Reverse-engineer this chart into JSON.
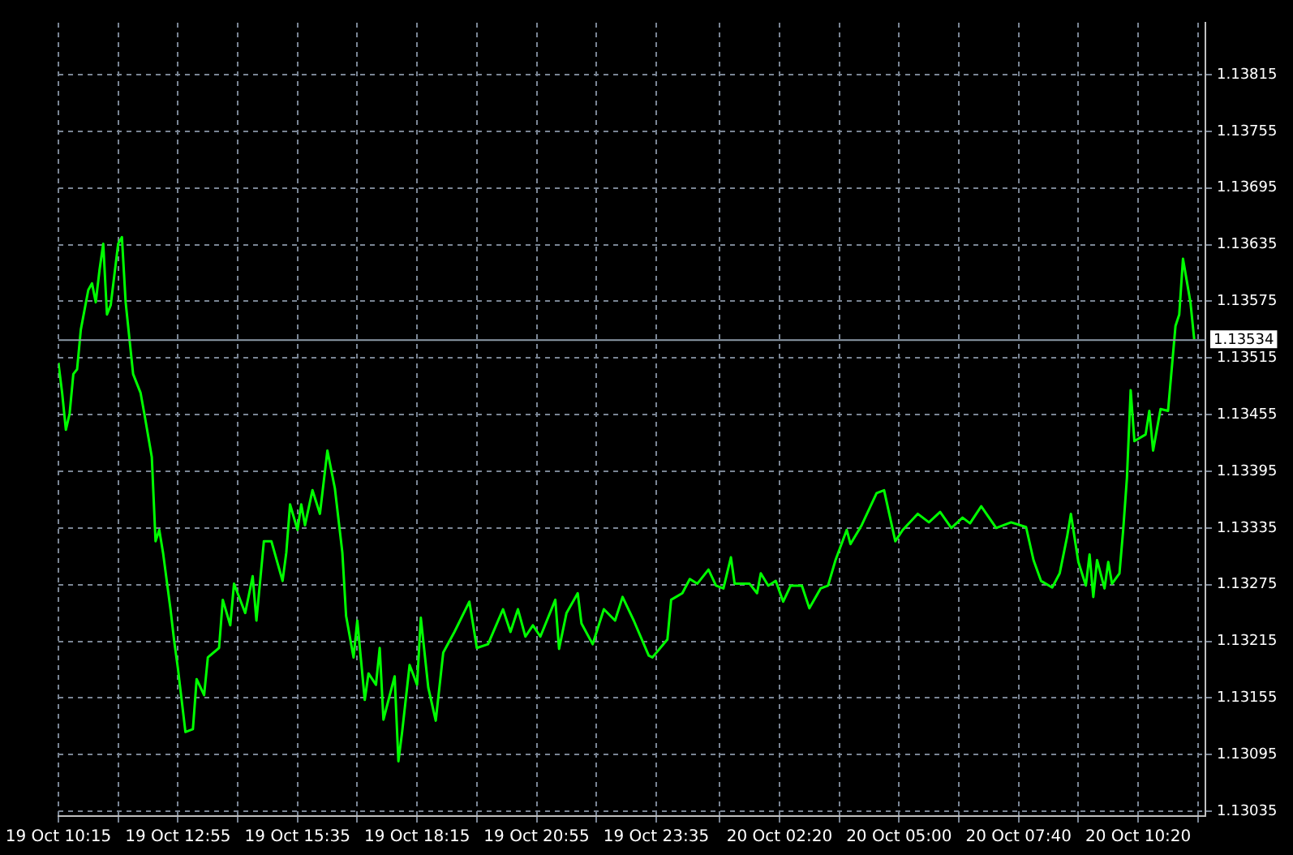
{
  "chart_data": {
    "type": "line",
    "x": [
      "--10-19T10:15",
      "--10-19T10:20",
      "--10-19T10:25",
      "--10-19T10:30",
      "--10-19T10:35",
      "--10-19T10:40",
      "--10-19T10:45",
      "--10-19T10:55",
      "--10-19T11:00",
      "--10-19T11:05",
      "--10-19T11:10",
      "--10-19T11:15",
      "--10-19T11:20",
      "--10-19T11:25",
      "--10-19T11:35",
      "--10-19T11:40",
      "--10-19T11:45",
      "--10-19T11:55",
      "--10-19T12:05",
      "--10-19T12:10",
      "--10-19T12:20",
      "--10-19T12:25",
      "--10-19T12:30",
      "--10-19T12:35",
      "--10-19T12:45",
      "--10-19T12:50",
      "--10-19T12:55",
      "--10-19T13:05",
      "--10-19T13:15",
      "--10-19T13:20",
      "--10-19T13:30",
      "--10-19T13:35",
      "--10-19T13:50",
      "--10-19T13:55",
      "--10-19T14:05",
      "--10-19T14:10",
      "--10-19T14:25",
      "--10-19T14:35",
      "--10-19T14:40",
      "--10-19T14:50",
      "--10-19T15:00",
      "--10-19T15:15",
      "--10-19T15:20",
      "--10-19T15:25",
      "--10-19T15:35",
      "--10-19T15:40",
      "--10-19T15:45",
      "--10-19T15:55",
      "--10-19T16:05",
      "--10-19T16:15",
      "--10-19T16:25",
      "--10-19T16:35",
      "--10-19T16:40",
      "--10-19T16:50",
      "--10-19T16:55",
      "--10-19T17:05",
      "--10-19T17:10",
      "--10-19T17:20",
      "--10-19T17:25",
      "--10-19T17:30",
      "--10-19T17:45",
      "--10-19T17:50",
      "--10-19T17:55",
      "--10-19T18:05",
      "--10-19T18:15",
      "--10-19T18:20",
      "--10-19T18:30",
      "--10-19T18:40",
      "--10-19T18:50",
      "--10-19T19:05",
      "--10-19T19:25",
      "--10-19T19:35",
      "--10-19T19:50",
      "--10-19T20:10",
      "--10-19T20:20",
      "--10-19T20:30",
      "--10-19T20:40",
      "--10-19T20:50",
      "--10-19T21:00",
      "--10-19T21:20",
      "--10-19T21:25",
      "--10-19T21:35",
      "--10-19T21:50",
      "--10-19T21:55",
      "--10-19T22:10",
      "--10-19T22:25",
      "--10-19T22:40",
      "--10-19T22:50",
      "--10-19T23:05",
      "--10-19T23:25",
      "--10-19T23:30",
      "--10-19T23:50",
      "--10-19T23:55",
      "--10-20T00:10",
      "--10-20T00:20",
      "--10-20T00:30",
      "--10-20T00:45",
      "--10-20T00:55",
      "--10-20T01:05",
      "--10-20T01:15",
      "--10-20T01:20",
      "--10-20T01:40",
      "--10-20T01:50",
      "--10-20T01:55",
      "--10-20T02:05",
      "--10-20T02:15",
      "--10-20T02:25",
      "--10-20T02:35",
      "--10-20T02:50",
      "--10-20T03:00",
      "--10-20T03:15",
      "--10-20T03:25",
      "--10-20T03:35",
      "--10-20T03:50",
      "--10-20T03:55",
      "--10-20T04:10",
      "--10-20T04:30",
      "--10-20T04:40",
      "--10-20T04:55",
      "--10-20T05:05",
      "--10-20T05:25",
      "--10-20T05:40",
      "--10-20T05:55",
      "--10-20T06:10",
      "--10-20T06:25",
      "--10-20T06:35",
      "--10-20T06:50",
      "--10-20T07:10",
      "--10-20T07:30",
      "--10-20T07:50",
      "--10-20T08:00",
      "--10-20T08:10",
      "--10-20T08:25",
      "--10-20T08:35",
      "--10-20T08:45",
      "--10-20T08:50",
      "--10-20T09:00",
      "--10-20T09:10",
      "--10-20T09:15",
      "--10-20T09:20",
      "--10-20T09:25",
      "--10-20T09:35",
      "--10-20T09:40",
      "--10-20T09:45",
      "--10-20T09:55",
      "--10-20T10:00",
      "--10-20T10:05",
      "--10-20T10:10",
      "--10-20T10:15",
      "--10-20T10:30",
      "--10-20T10:35",
      "--10-20T10:40",
      "--10-20T10:50",
      "--10-20T11:00",
      "--10-20T11:10",
      "--10-20T11:15",
      "--10-20T11:20",
      "--10-20T11:30",
      "--10-20T11:35"
    ],
    "series": [
      {
        "color": "#00ff00",
        "values": [
          1.1351,
          1.13478,
          1.13439,
          1.13456,
          1.13498,
          1.13503,
          1.13545,
          1.13587,
          1.13594,
          1.13574,
          1.13608,
          1.13636,
          1.13561,
          1.13571,
          1.13636,
          1.13643,
          1.13574,
          1.13498,
          1.13478,
          1.13456,
          1.1341,
          1.13321,
          1.13333,
          1.13309,
          1.13249,
          1.13215,
          1.13186,
          1.13119,
          1.13122,
          1.13175,
          1.13158,
          1.13198,
          1.13208,
          1.13259,
          1.13232,
          1.13276,
          1.13245,
          1.13284,
          1.13237,
          1.13321,
          1.13321,
          1.13279,
          1.13309,
          1.1336,
          1.13333,
          1.1336,
          1.13338,
          1.13375,
          1.1335,
          1.13417,
          1.13377,
          1.13309,
          1.13242,
          1.13198,
          1.13237,
          1.13153,
          1.13181,
          1.13169,
          1.13208,
          1.13132,
          1.13178,
          1.13088,
          1.13119,
          1.1319,
          1.13169,
          1.1324,
          1.13166,
          1.13131,
          1.13203,
          1.13225,
          1.13257,
          1.13208,
          1.13212,
          1.13249,
          1.13225,
          1.13249,
          1.1322,
          1.13232,
          1.1322,
          1.13259,
          1.13207,
          1.13245,
          1.13266,
          1.13234,
          1.13212,
          1.13249,
          1.13237,
          1.13262,
          1.13237,
          1.132,
          1.13198,
          1.13217,
          1.13259,
          1.13266,
          1.13281,
          1.13276,
          1.13291,
          1.13274,
          1.13271,
          1.13304,
          1.13276,
          1.13276,
          1.13266,
          1.13287,
          1.13274,
          1.13279,
          1.13257,
          1.13274,
          1.13274,
          1.1325,
          1.13271,
          1.13274,
          1.13301,
          1.13333,
          1.13318,
          1.13338,
          1.13372,
          1.13375,
          1.13321,
          1.13333,
          1.1335,
          1.13341,
          1.13352,
          1.13335,
          1.13346,
          1.1334,
          1.13358,
          1.13335,
          1.13341,
          1.13336,
          1.13301,
          1.13279,
          1.13272,
          1.13287,
          1.13326,
          1.1335,
          1.13299,
          1.13274,
          1.13307,
          1.13262,
          1.13301,
          1.13271,
          1.13299,
          1.13276,
          1.13287,
          1.13333,
          1.13388,
          1.13481,
          1.13427,
          1.13434,
          1.13459,
          1.13417,
          1.13461,
          1.13459,
          1.13549,
          1.13561,
          1.1362,
          1.13574,
          1.13535
        ]
      }
    ],
    "xlim": [
      "--10-19T10:15",
      "--10-20T11:50"
    ],
    "xticks": [
      {
        "value": "--10-19T10:15",
        "label": "19 Oct 10:15"
      },
      {
        "value": "--10-19T11:35",
        "label": null
      },
      {
        "value": "--10-19T12:55",
        "label": "19 Oct 12:55"
      },
      {
        "value": "--10-19T14:15",
        "label": null
      },
      {
        "value": "--10-19T15:35",
        "label": "19 Oct 15:35"
      },
      {
        "value": "--10-19T16:55",
        "label": null
      },
      {
        "value": "--10-19T18:15",
        "label": "19 Oct 18:15"
      },
      {
        "value": "--10-19T19:35",
        "label": null
      },
      {
        "value": "--10-19T20:55",
        "label": "19 Oct 20:55"
      },
      {
        "value": "--10-19T22:15",
        "label": null
      },
      {
        "value": "--10-19T23:35",
        "label": "19 Oct 23:35"
      },
      {
        "value": "--10-20T01:00",
        "label": null
      },
      {
        "value": "--10-20T02:20",
        "label": "20 Oct 02:20"
      },
      {
        "value": "--10-20T03:40",
        "label": null
      },
      {
        "value": "--10-20T05:00",
        "label": "20 Oct 05:00"
      },
      {
        "value": "--10-20T06:20",
        "label": null
      },
      {
        "value": "--10-20T07:40",
        "label": "20 Oct 07:40"
      },
      {
        "value": "--10-20T09:00",
        "label": null
      },
      {
        "value": "--10-20T10:20",
        "label": "20 Oct 10:20"
      },
      {
        "value": "--10-20T11:40",
        "label": null
      }
    ],
    "ylim": [
      1.1303,
      1.1387
    ],
    "yticks": [
      1.13035,
      1.13095,
      1.13155,
      1.13215,
      1.13275,
      1.13335,
      1.13395,
      1.13455,
      1.13515,
      1.13575,
      1.13635,
      1.13695,
      1.13755,
      1.13815
    ],
    "ref_lines": [
      {
        "axis": "y",
        "value": 1.13534,
        "label": "1.13534",
        "color": "#8c9aa8"
      }
    ],
    "grid": true,
    "legend": false,
    "marker": "none",
    "line_style": "solid"
  }
}
